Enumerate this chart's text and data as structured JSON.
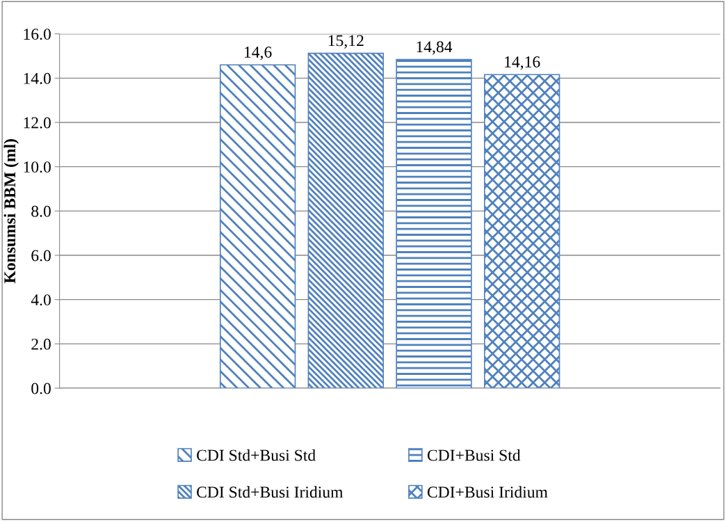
{
  "chart_data": {
    "type": "bar",
    "ylabel": "Konsumsi BBM (ml)",
    "categories": [
      null
    ],
    "series": [
      {
        "name": "CDI Std+Busi Std",
        "color": "#4f81bd",
        "values": [
          14.6
        ],
        "value_labels": [
          "14,6"
        ]
      },
      {
        "name": "CDI Std+Busi Iridium",
        "color": "#4f81bd",
        "values": [
          15.12
        ],
        "value_labels": [
          "15,12"
        ]
      },
      {
        "name": "CDI+Busi Std",
        "color": "#4f81bd",
        "values": [
          14.84
        ],
        "value_labels": [
          "14,84"
        ]
      },
      {
        "name": "CDI+Busi Iridium",
        "color": "#4f81bd",
        "values": [
          14.16
        ],
        "value_labels": [
          "14,16"
        ]
      }
    ],
    "ylim": [
      0,
      16
    ],
    "yticks": [
      {
        "value": 0,
        "label": "0.0"
      },
      {
        "value": 2,
        "label": "2.0"
      },
      {
        "value": 4,
        "label": "4.0"
      },
      {
        "value": 6,
        "label": "6.0"
      },
      {
        "value": 8,
        "label": "8.0"
      },
      {
        "value": 10,
        "label": "10.0"
      },
      {
        "value": 12,
        "label": "12.0"
      },
      {
        "value": 14,
        "label": "14.0"
      },
      {
        "value": 16,
        "label": "16.0"
      }
    ],
    "grid": "y",
    "legend": "bottom"
  }
}
